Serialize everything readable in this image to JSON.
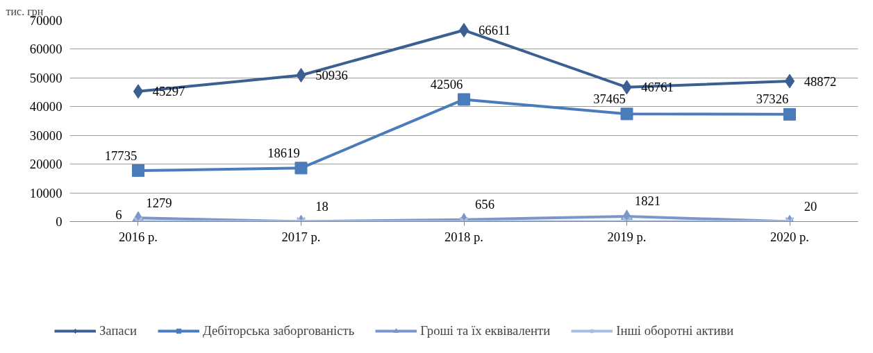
{
  "chart_data": {
    "type": "line",
    "ylabel": "тис. грн",
    "categories": [
      "2016 р.",
      "2017 р.",
      "2018 р.",
      "2019 р.",
      "2020 р."
    ],
    "series": [
      {
        "name": "Запаси",
        "color": "#3b5f91",
        "marker": "diamond",
        "values": [
          45297,
          50936,
          66611,
          46761,
          48872
        ],
        "value_labels": [
          "45297",
          "50936",
          "66611",
          "46761",
          "48872"
        ]
      },
      {
        "name": "Дебіторська заборгованість",
        "color": "#4a7bbb",
        "marker": "square",
        "values": [
          17735,
          18619,
          42506,
          37465,
          37326
        ],
        "value_labels": [
          "17735",
          "18619",
          "42506",
          "37465",
          "37326"
        ]
      },
      {
        "name": "Гроші та їх еквіваленти",
        "color": "#7b97c9",
        "marker": "triangle",
        "values": [
          1279,
          18,
          656,
          1821,
          20
        ],
        "value_labels": [
          "1279",
          "18",
          "656",
          "1821",
          "20"
        ]
      },
      {
        "name": "Інші оборотні активи",
        "color": "#a9bddf",
        "marker": "cross",
        "values": [
          6,
          0,
          0,
          0,
          0
        ],
        "value_labels": [
          "6",
          null,
          null,
          null,
          null
        ]
      }
    ],
    "ylim": [
      0,
      70000
    ],
    "yticks": [
      0,
      10000,
      20000,
      30000,
      40000,
      50000,
      60000,
      70000
    ],
    "grid": "y",
    "legend": "bottom"
  }
}
